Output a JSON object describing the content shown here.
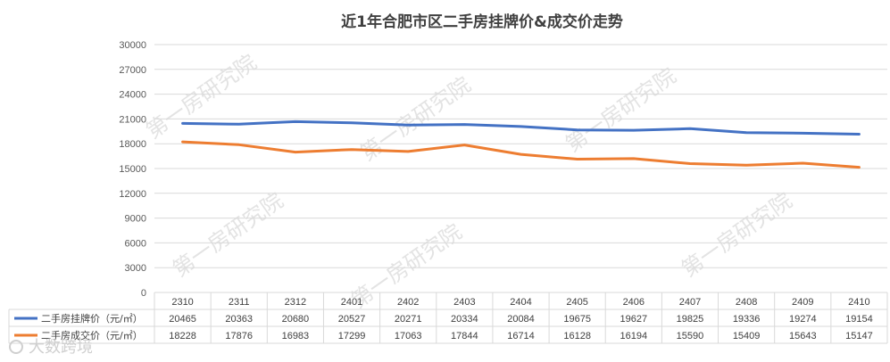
{
  "chart_data": {
    "type": "line",
    "title": "近1年合肥市区二手房挂牌价&成交价走势",
    "categories": [
      "2310",
      "2311",
      "2312",
      "2401",
      "2402",
      "2403",
      "2404",
      "2405",
      "2406",
      "2407",
      "2408",
      "2409",
      "2410"
    ],
    "ylim": [
      0,
      30000
    ],
    "yticks": [
      0,
      3000,
      6000,
      9000,
      12000,
      15000,
      18000,
      21000,
      24000,
      27000,
      30000
    ],
    "grid": true,
    "legend_position": "data-table",
    "series": [
      {
        "name": "二手房挂牌价（元/㎡）",
        "color": "#4472C4",
        "values": [
          20465,
          20363,
          20680,
          20527,
          20271,
          20334,
          20084,
          19675,
          19627,
          19825,
          19336,
          19274,
          19154
        ]
      },
      {
        "name": "二手房成交价（元/㎡）",
        "color": "#ED7D31",
        "values": [
          18228,
          17876,
          16983,
          17299,
          17063,
          17844,
          16714,
          16128,
          16194,
          15590,
          15409,
          15643,
          15147
        ]
      }
    ]
  },
  "watermark": "第一房研究院",
  "brand_watermark": "大数跨境"
}
